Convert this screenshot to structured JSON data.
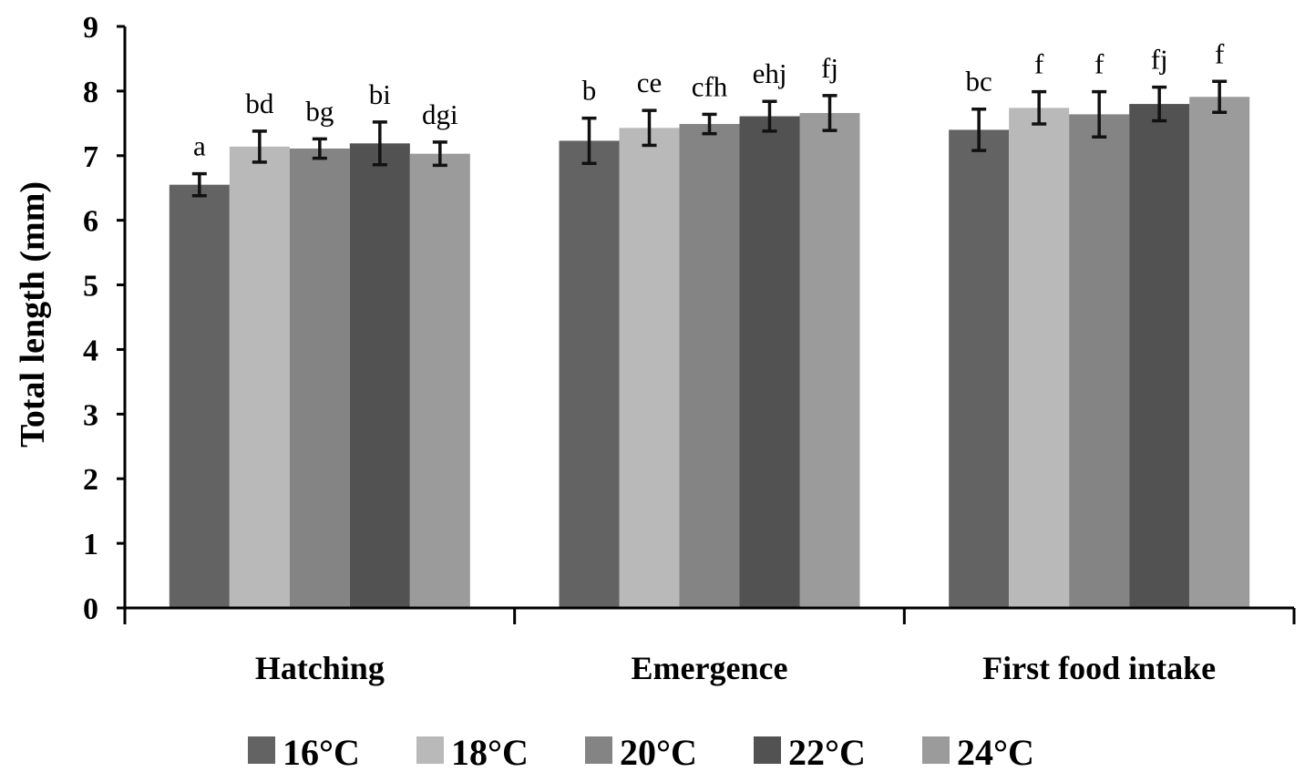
{
  "chart_data": {
    "type": "bar",
    "title": "",
    "xlabel": "",
    "ylabel": "Total length (mm)",
    "ylim": [
      0,
      9
    ],
    "yticks": [
      0,
      1,
      2,
      3,
      4,
      5,
      6,
      7,
      8,
      9
    ],
    "categories": [
      "Hatching",
      "Emergence",
      "First food intake"
    ],
    "grid": false,
    "legend_position": "bottom",
    "series": [
      {
        "name": "16°C",
        "color": "#636363",
        "values": [
          6.55,
          7.23,
          7.4
        ],
        "errors": [
          0.17,
          0.35,
          0.32
        ],
        "labels": [
          "a",
          "b",
          "bc"
        ]
      },
      {
        "name": "18°C",
        "color": "#b9b9b9",
        "values": [
          7.14,
          7.43,
          7.74
        ],
        "errors": [
          0.24,
          0.27,
          0.25
        ],
        "labels": [
          "bd",
          "ce",
          "f"
        ]
      },
      {
        "name": "20°C",
        "color": "#848484",
        "values": [
          7.11,
          7.49,
          7.64
        ],
        "errors": [
          0.15,
          0.15,
          0.35
        ],
        "labels": [
          "bg",
          "cfh",
          "f"
        ]
      },
      {
        "name": "22°C",
        "color": "#525252",
        "values": [
          7.19,
          7.61,
          7.8
        ],
        "errors": [
          0.33,
          0.23,
          0.26
        ],
        "labels": [
          "bi",
          "ehj",
          "fj"
        ]
      },
      {
        "name": "24°C",
        "color": "#9b9b9b",
        "values": [
          7.03,
          7.66,
          7.91
        ],
        "errors": [
          0.18,
          0.27,
          0.24
        ],
        "labels": [
          "dgi",
          "fj",
          "f"
        ]
      }
    ]
  }
}
